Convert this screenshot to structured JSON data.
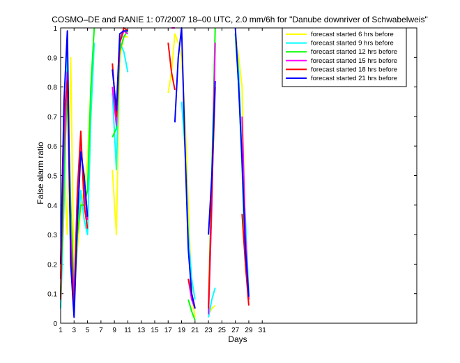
{
  "chart_data": {
    "type": "line",
    "title": "COSMO–DE and RANIE 1: 07/2007 18–00 UTC, 2.0 mm/6h for \"Danube downriver of Schwabelweis\"",
    "xlabel": "Days",
    "ylabel": "False alarm ratio",
    "xlim": [
      1,
      54
    ],
    "ylim": [
      0,
      1
    ],
    "x_ticks": [
      1,
      3,
      5,
      7,
      9,
      11,
      13,
      15,
      17,
      19,
      21,
      23,
      25,
      27,
      29,
      31
    ],
    "y_ticks": [
      0,
      0.1,
      0.2,
      0.3,
      0.4,
      0.5,
      0.6,
      0.7,
      0.8,
      0.9,
      1
    ],
    "legend_position": "top-right",
    "series": [
      {
        "name": "forecast started 6 hrs before",
        "color": "#ffff00",
        "segments": [
          [
            [
              1,
              0.2
            ],
            [
              1.5,
              0.55
            ],
            [
              2,
              0.3
            ],
            [
              2.5,
              0.9
            ],
            [
              3,
              0.1
            ],
            [
              3.5,
              0.25
            ],
            [
              4,
              0.4
            ],
            [
              4.5,
              0.45
            ],
            [
              5,
              0.55
            ],
            [
              5.5,
              0.8
            ],
            [
              6,
              0.95
            ]
          ],
          [
            [
              8.7,
              0.52
            ],
            [
              9.3,
              0.3
            ],
            [
              9.8,
              0.9
            ],
            [
              10.4,
              0.97
            ],
            [
              11,
              0.97
            ]
          ],
          [
            [
              17,
              0.78
            ],
            [
              17.5,
              0.85
            ],
            [
              18,
              0.98
            ],
            [
              18.5,
              0.95
            ],
            [
              19,
              0.9
            ],
            [
              19.5,
              0.7
            ],
            [
              20,
              0.4
            ],
            [
              20.5,
              0.1
            ],
            [
              21,
              0.02
            ]
          ],
          [
            [
              23,
              0.03
            ],
            [
              23.5,
              0.05
            ],
            [
              24,
              0.06
            ]
          ],
          [
            [
              27,
              0.98
            ],
            [
              27.5,
              0.9
            ],
            [
              28,
              0.8
            ],
            [
              28.5,
              0.3
            ],
            [
              29,
              0.08
            ]
          ]
        ]
      },
      {
        "name": "forecast started 9 hrs before",
        "color": "#00ffff",
        "segments": [
          [
            [
              1,
              0.05
            ],
            [
              1.5,
              0.4
            ],
            [
              2,
              0.92
            ],
            [
              2.5,
              0.2
            ],
            [
              3,
              0.12
            ],
            [
              3.5,
              0.3
            ],
            [
              4,
              0.45
            ],
            [
              4.5,
              0.35
            ],
            [
              5,
              0.3
            ],
            [
              5.5,
              0.7
            ],
            [
              6,
              0.95
            ]
          ],
          [
            [
              8.7,
              0.78
            ],
            [
              9.3,
              0.52
            ],
            [
              9.8,
              0.95
            ],
            [
              10.4,
              0.92
            ],
            [
              11,
              0.85
            ]
          ],
          [
            [
              19,
              0.75
            ],
            [
              19.5,
              0.6
            ],
            [
              20,
              0.3
            ],
            [
              20.5,
              0.15
            ],
            [
              21,
              0.08
            ]
          ],
          [
            [
              23,
              0.02
            ],
            [
              23.5,
              0.08
            ],
            [
              24,
              0.12
            ]
          ],
          [
            [
              27,
              0.98
            ],
            [
              27.5,
              0.85
            ],
            [
              28,
              0.55
            ],
            [
              28.5,
              0.35
            ],
            [
              29,
              0.1
            ]
          ]
        ]
      },
      {
        "name": "forecast started 12 hrs before",
        "color": "#00ff00",
        "segments": [
          [
            [
              1,
              0.1
            ],
            [
              1.5,
              0.5
            ],
            [
              2,
              0.8
            ],
            [
              2.5,
              0.4
            ],
            [
              3,
              0.1
            ],
            [
              3.5,
              0.3
            ],
            [
              4,
              0.4
            ],
            [
              4.5,
              0.4
            ],
            [
              5,
              0.45
            ],
            [
              5.5,
              0.8
            ],
            [
              6,
              1.0
            ]
          ],
          [
            [
              8.7,
              0.63
            ],
            [
              9.3,
              0.66
            ],
            [
              9.8,
              0.92
            ],
            [
              10.4,
              0.97
            ],
            [
              11,
              0.99
            ]
          ],
          [
            [
              20,
              0.08
            ],
            [
              20.5,
              0.04
            ],
            [
              21,
              0.01
            ]
          ],
          [
            [
              23,
              0.05
            ],
            [
              23.5,
              0.5
            ],
            [
              24,
              1.0
            ]
          ],
          [
            [
              27,
              0.98
            ],
            [
              27.5,
              0.8
            ],
            [
              28,
              0.53
            ],
            [
              28.5,
              0.2
            ],
            [
              29,
              0.08
            ]
          ]
        ]
      },
      {
        "name": "forecast started 15 hrs before",
        "color": "#ff00ff",
        "segments": [
          [
            [
              1,
              0.15
            ],
            [
              1.5,
              0.6
            ],
            [
              2,
              0.85
            ],
            [
              2.5,
              0.3
            ],
            [
              3,
              0.08
            ],
            [
              3.5,
              0.45
            ],
            [
              4,
              0.62
            ],
            [
              4.5,
              0.45
            ],
            [
              5,
              0.35
            ]
          ],
          [
            [
              8.7,
              0.8
            ],
            [
              9.3,
              0.67
            ],
            [
              9.8,
              0.95
            ],
            [
              10.4,
              0.99
            ],
            [
              11,
              0.98
            ]
          ],
          [
            [
              17.5,
              1.0
            ],
            [
              18,
              1.0
            ]
          ],
          [
            [
              20,
              0.15
            ],
            [
              20.5,
              0.08
            ],
            [
              21,
              0.05
            ]
          ],
          [
            [
              23,
              0.03
            ],
            [
              23.5,
              0.4
            ],
            [
              24,
              0.95
            ]
          ],
          [
            [
              28,
              0.7
            ],
            [
              28.5,
              0.3
            ],
            [
              29,
              0.08
            ]
          ]
        ]
      },
      {
        "name": "forecast started 18 hrs before",
        "color": "#ff0000",
        "segments": [
          [
            [
              1,
              0.08
            ],
            [
              1.5,
              0.7
            ],
            [
              2,
              0.82
            ],
            [
              2.5,
              0.25
            ],
            [
              3,
              0.05
            ],
            [
              3.5,
              0.45
            ],
            [
              4,
              0.65
            ],
            [
              4.5,
              0.4
            ],
            [
              5,
              0.32
            ]
          ],
          [
            [
              8.7,
              0.88
            ],
            [
              9.3,
              0.7
            ],
            [
              9.8,
              0.95
            ],
            [
              10.4,
              1.0
            ],
            [
              11,
              0.99
            ]
          ],
          [
            [
              17,
              0.95
            ],
            [
              17.5,
              0.85
            ],
            [
              18,
              0.79
            ]
          ],
          [
            [
              20,
              0.15
            ],
            [
              20.5,
              0.1
            ],
            [
              21,
              0.05
            ]
          ],
          [
            [
              23,
              0.05
            ],
            [
              23.5,
              0.45
            ],
            [
              24,
              0.8
            ]
          ],
          [
            [
              28,
              0.37
            ],
            [
              28.5,
              0.2
            ],
            [
              29,
              0.06
            ]
          ]
        ]
      },
      {
        "name": "forecast started 21 hrs before",
        "color": "#0000ff",
        "segments": [
          [
            [
              1,
              0.2
            ],
            [
              1.5,
              0.75
            ],
            [
              2,
              0.99
            ],
            [
              2.5,
              0.2
            ],
            [
              3,
              0.02
            ],
            [
              3.5,
              0.35
            ],
            [
              4,
              0.58
            ],
            [
              4.5,
              0.5
            ],
            [
              5,
              0.36
            ]
          ],
          [
            [
              8.7,
              0.86
            ],
            [
              9.3,
              0.72
            ],
            [
              9.8,
              0.98
            ],
            [
              10.4,
              0.99
            ],
            [
              11,
              0.99
            ]
          ],
          [
            [
              18,
              0.68
            ],
            [
              18.5,
              0.9
            ],
            [
              19,
              1.0
            ],
            [
              19.5,
              0.6
            ],
            [
              20,
              0.25
            ],
            [
              20.5,
              0.1
            ],
            [
              21,
              0.05
            ]
          ],
          [
            [
              23,
              0.3
            ],
            [
              23.5,
              0.5
            ],
            [
              24,
              0.82
            ]
          ],
          [
            [
              27,
              1.0
            ],
            [
              27.5,
              0.8
            ],
            [
              28,
              0.55
            ],
            [
              28.5,
              0.25
            ],
            [
              29,
              0.09
            ]
          ]
        ]
      }
    ]
  }
}
